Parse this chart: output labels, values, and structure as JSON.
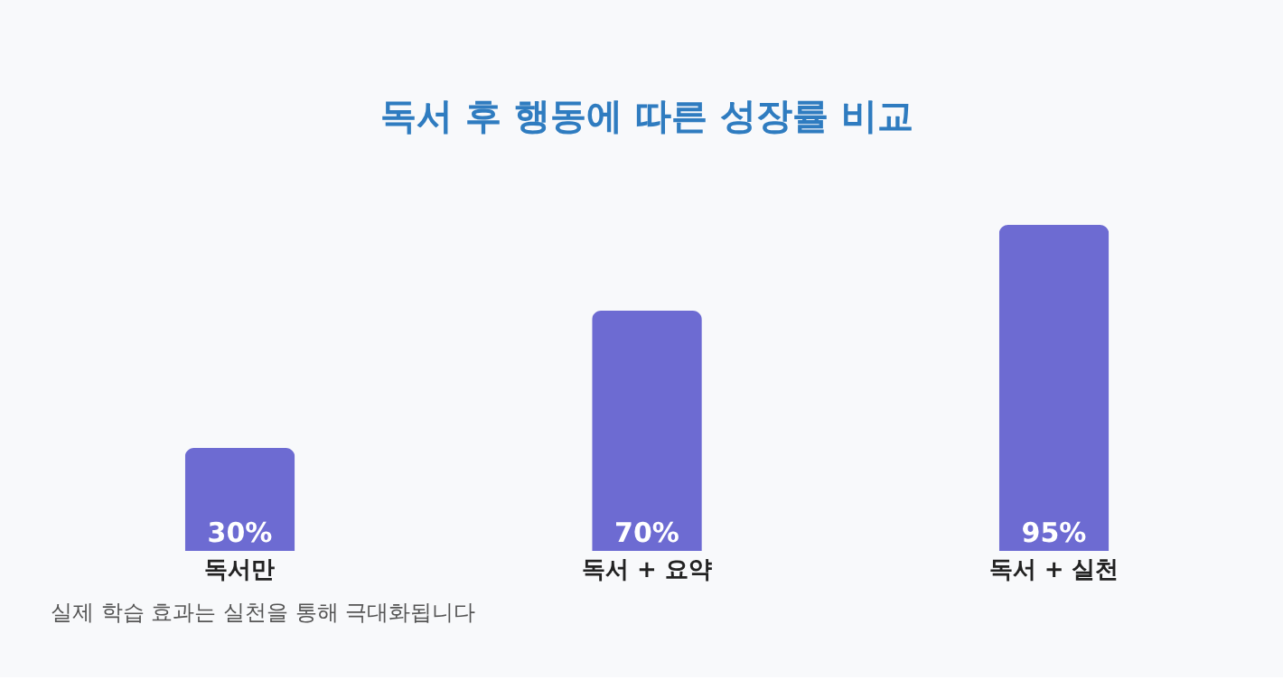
{
  "chart_data": {
    "type": "bar",
    "title": "독서 후 행동에 따른 성장률 비교",
    "categories": [
      "독서만",
      "독서 + 요약",
      "독서 + 실천"
    ],
    "values": [
      30,
      70,
      95
    ],
    "value_labels": [
      "30%",
      "70%",
      "95%"
    ],
    "color": "#6d6bd2",
    "annotations": [
      "실제 학습 효과는 실천을 통해 극대화됩니다"
    ]
  }
}
